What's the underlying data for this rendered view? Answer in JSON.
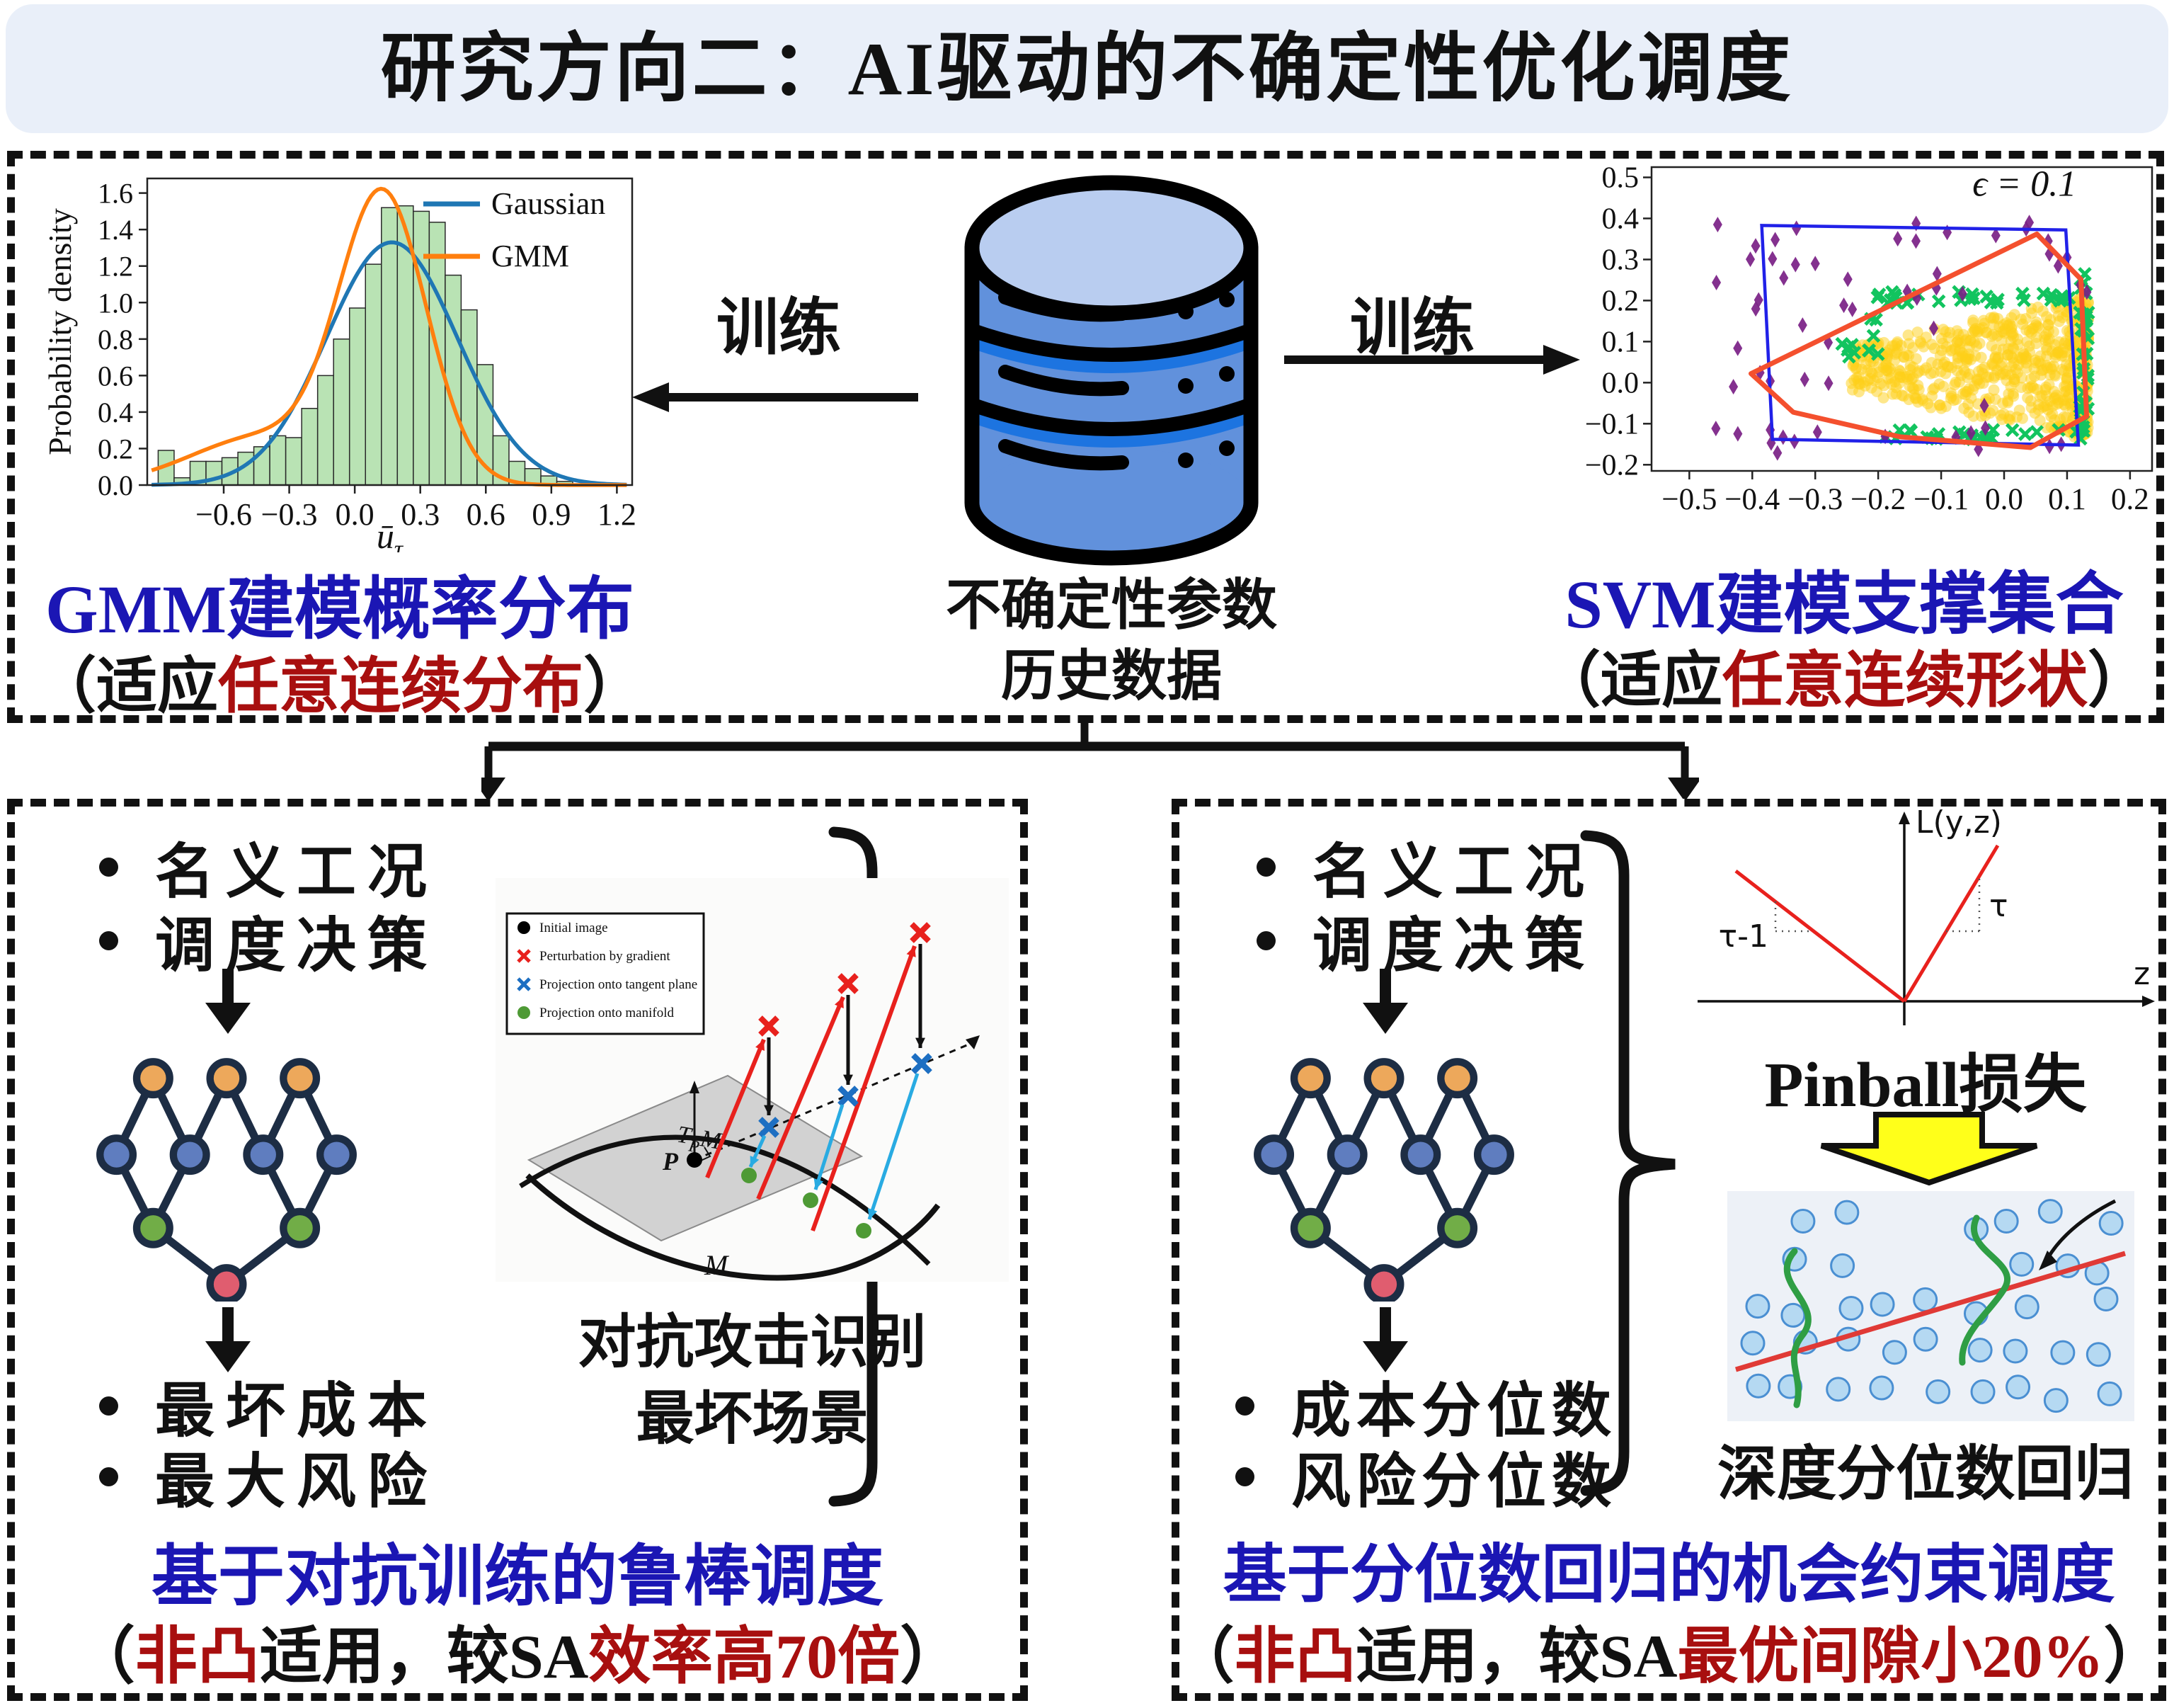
{
  "title": "研究方向二：AI驱动的不确定性优化调度",
  "colors": {
    "headline_blue": "#1b16b4",
    "accent_red": "#a80f0f",
    "text_black": "#111111",
    "node_edge": "#1d2d44",
    "node_orange": "#eda85b",
    "node_blue": "#5f7dbf",
    "node_green": "#71ad47",
    "node_red": "#e05d6f",
    "db_body": "#6191dc",
    "db_top": "#b9cdf0",
    "db_band": "#1d74e0",
    "big_arrow_yellow": "#ffff1a"
  },
  "top_section": {
    "train_left": "训练",
    "train_right": "训练",
    "db_label_line1": "不确定性参数",
    "db_label_line2": "历史数据",
    "gmm_title": "GMM建模概率分布",
    "gmm_sub": [
      [
        "（适应",
        "#111111"
      ],
      [
        "任意连续分布",
        "#a80f0f"
      ],
      [
        "）",
        "#111111"
      ]
    ],
    "svm_title": "SVM建模支撑集合",
    "svm_sub": [
      [
        "（适应",
        "#111111"
      ],
      [
        "任意连续形状",
        "#a80f0f"
      ],
      [
        "）",
        "#111111"
      ]
    ]
  },
  "bottom_left": {
    "inputs": [
      "名义工况",
      "调度决策"
    ],
    "outputs": [
      "最坏成本",
      "最大风险"
    ],
    "figure": {
      "legend": [
        "Initial image",
        "Perturbation by gradient",
        "Projection onto tangent plane",
        "Projection onto manifold"
      ],
      "labels": {
        "point": "P",
        "plane_T": "T",
        "plane_P": "P",
        "plane_M": "M",
        "manifold": "M"
      }
    },
    "figure_caption_line1": "对抗攻击识别",
    "figure_caption_line2": "最坏场景",
    "headline": "基于对抗训练的鲁棒调度",
    "sub": [
      [
        "（",
        "#111111"
      ],
      [
        "非凸",
        "#a80f0f"
      ],
      [
        "适用，较SA",
        "#111111"
      ],
      [
        "效率高70倍",
        "#a80f0f"
      ],
      [
        "）",
        "#111111"
      ]
    ]
  },
  "bottom_right": {
    "inputs": [
      "名义工况",
      "调度决策"
    ],
    "outputs": [
      "成本分位数",
      "风险分位数"
    ],
    "pinball_caption": "Pinball损失",
    "dqr_caption": "深度分位数回归",
    "headline": "基于分位数回归的机会约束调度",
    "sub": [
      [
        "（",
        "#111111"
      ],
      [
        "非凸",
        "#a80f0f"
      ],
      [
        "适用，较SA",
        "#111111"
      ],
      [
        "最优间隙小20%",
        "#a80f0f"
      ],
      [
        "）",
        "#111111"
      ]
    ]
  },
  "chart_data": [
    {
      "id": "gmm_hist",
      "type": "bar",
      "title": "",
      "xlabel": "ū_τ",
      "ylabel": "Probability density",
      "xlim": [
        -0.95,
        1.27
      ],
      "ylim": [
        0,
        1.68
      ],
      "xticks": [
        -0.6,
        -0.3,
        0.0,
        0.3,
        0.6,
        0.9,
        1.2
      ],
      "yticks": [
        0.0,
        0.2,
        0.4,
        0.6,
        0.8,
        1.0,
        1.2,
        1.4,
        1.6
      ],
      "bin_start": -0.9,
      "bin_width": 0.073,
      "bar_heights": [
        0.19,
        0.04,
        0.13,
        0.13,
        0.15,
        0.18,
        0.21,
        0.27,
        0.26,
        0.42,
        0.6,
        0.8,
        0.97,
        1.21,
        1.52,
        1.53,
        1.5,
        1.44,
        1.15,
        0.96,
        0.66,
        0.27,
        0.13,
        0.09,
        0.05,
        0.02
      ],
      "bar_color": "#b9e3b4",
      "grid": false,
      "legend_position": "upper right",
      "legend": [
        {
          "label": "Gaussian",
          "color": "#1f77b4"
        },
        {
          "label": "GMM",
          "color": "#ff7f0e"
        }
      ],
      "gaussian_fit": {
        "mu": 0.17,
        "sigma": 0.3,
        "peak": 1.33
      },
      "gmm_components": [
        {
          "w": 0.78,
          "mu": 0.13,
          "sigma": 0.2
        },
        {
          "w": 0.22,
          "mu": -0.42,
          "sigma": 0.33
        }
      ]
    },
    {
      "id": "svm_scatter",
      "type": "scatter",
      "annotation": "ϵ = 0.1",
      "xlim": [
        -0.56,
        0.235
      ],
      "ylim": [
        -0.215,
        0.525
      ],
      "xticks": [
        -0.5,
        -0.4,
        -0.3,
        -0.2,
        -0.1,
        0.0,
        0.1,
        0.2
      ],
      "yticks": [
        -0.2,
        -0.1,
        0.0,
        0.1,
        0.2,
        0.3,
        0.4,
        0.5
      ],
      "blue_box": [
        [
          -0.385,
          0.383
        ],
        [
          0.098,
          0.372
        ],
        [
          0.118,
          -0.152
        ],
        [
          -0.368,
          -0.138
        ]
      ],
      "red_hull": [
        [
          -0.402,
          0.022
        ],
        [
          0.052,
          0.362
        ],
        [
          0.122,
          0.252
        ],
        [
          0.131,
          -0.082
        ],
        [
          0.042,
          -0.158
        ],
        [
          -0.165,
          -0.132
        ],
        [
          -0.335,
          -0.072
        ]
      ],
      "series": [
        {
          "name": "historical samples",
          "marker": "circle",
          "color": "#fdd017",
          "count": 620
        },
        {
          "name": "support boundary samples",
          "marker": "x",
          "color": "#12c45f",
          "count": 100
        },
        {
          "name": "outlier samples",
          "marker": "diamond",
          "color": "#7a1f85",
          "count": 58
        }
      ],
      "seed": 42
    },
    {
      "id": "pinball",
      "type": "line",
      "xlabel": "z",
      "ylabel": "L(y,z)",
      "color": "#e8211d",
      "lines": [
        {
          "label": "τ-1",
          "from": [
            -2.0,
            1.55
          ],
          "to": [
            0,
            0
          ]
        },
        {
          "label": "τ",
          "from": [
            0,
            0
          ],
          "to": [
            1.1,
            1.85
          ]
        }
      ]
    },
    {
      "id": "dqr",
      "type": "scatter",
      "description": "deep quantile regression cartoon",
      "points_count": 40,
      "dot_color": "#b5d9f2",
      "dot_edge": "#4a8fd2",
      "line_color": "#e03a36",
      "curve_color": "#2f9e44",
      "seed": 7
    }
  ]
}
